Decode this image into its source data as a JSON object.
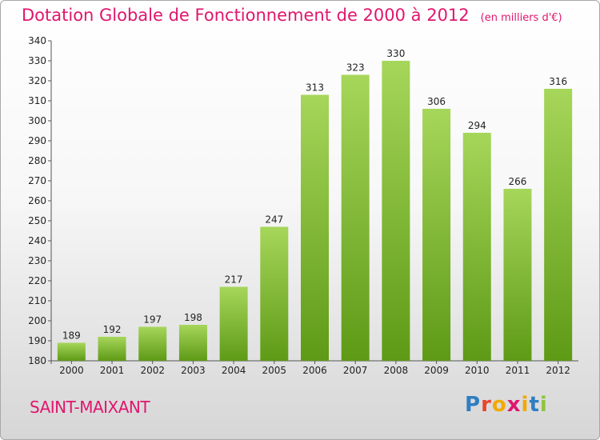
{
  "title": "Dotation Globale de Fonctionnement de 2000 à 2012",
  "unit": "(en milliers d'€)",
  "commune": "SAINT-MAIXANT",
  "logo": {
    "letters": [
      "P",
      "r",
      "o",
      "x",
      "i",
      "t",
      "i"
    ],
    "text": "Proxiti"
  },
  "colors": {
    "title": "#e0166e",
    "bar_light": "#a6d65a",
    "bar_dark": "#5e9a16"
  },
  "chart_data": {
    "type": "bar",
    "title": "Dotation Globale de Fonctionnement de 2000 à 2012",
    "subtitle": "(en milliers d'€)",
    "categories": [
      "2000",
      "2001",
      "2002",
      "2003",
      "2004",
      "2005",
      "2006",
      "2007",
      "2008",
      "2009",
      "2010",
      "2011",
      "2012"
    ],
    "values": [
      189,
      192,
      197,
      198,
      217,
      247,
      313,
      323,
      330,
      306,
      294,
      266,
      316
    ],
    "ylim": [
      180,
      340
    ],
    "yticks": [
      180,
      190,
      200,
      210,
      220,
      230,
      240,
      250,
      260,
      270,
      280,
      290,
      300,
      310,
      320,
      330,
      340
    ],
    "grid": false,
    "data_labels": true
  }
}
